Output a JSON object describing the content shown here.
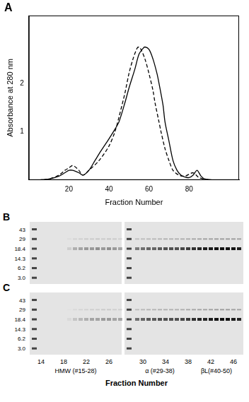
{
  "chart_data": {
    "type": "line",
    "panel": "A",
    "xlabel": "Fraction Number",
    "ylabel": "Absorbance at 280 nm",
    "xlim": [
      0,
      105
    ],
    "ylim": [
      0,
      3.4
    ],
    "xticks": [
      20,
      40,
      60,
      80
    ],
    "yticks": [
      1,
      2
    ],
    "grid": false,
    "series": [
      {
        "color": "#000000",
        "line_style": "solid",
        "x": [
          5,
          10,
          15,
          18,
          20,
          22,
          25,
          27,
          30,
          33,
          36,
          40,
          43,
          45,
          48,
          50,
          53,
          55,
          57,
          58,
          60,
          62,
          64,
          65,
          67,
          68,
          70,
          72,
          74,
          76,
          78,
          80,
          82,
          84,
          86,
          88,
          92
        ],
        "values": [
          0,
          0.02,
          0.08,
          0.15,
          0.2,
          0.2,
          0.15,
          0.1,
          0.2,
          0.4,
          0.6,
          0.85,
          1.05,
          1.2,
          1.6,
          1.9,
          2.3,
          2.6,
          2.72,
          2.75,
          2.7,
          2.5,
          2.2,
          2.0,
          1.55,
          1.2,
          0.8,
          0.4,
          0.2,
          0.1,
          0.06,
          0.05,
          0.1,
          0.2,
          0.08,
          0.02,
          0
        ]
      },
      {
        "color": "#000000",
        "line_style": "dashed",
        "x": [
          5,
          10,
          15,
          18,
          20,
          22,
          25,
          27,
          30,
          35,
          40,
          43,
          45,
          48,
          50,
          52,
          54,
          55,
          56,
          58,
          60,
          62,
          63,
          65,
          66,
          68,
          70,
          72,
          75,
          78,
          82,
          85,
          90
        ],
        "values": [
          0,
          0.02,
          0.1,
          0.2,
          0.25,
          0.3,
          0.2,
          0.1,
          0.2,
          0.4,
          0.7,
          1.0,
          1.3,
          1.8,
          2.2,
          2.5,
          2.72,
          2.75,
          2.7,
          2.5,
          2.2,
          1.85,
          1.6,
          1.2,
          1.0,
          0.65,
          0.4,
          0.2,
          0.1,
          0.08,
          0.15,
          0.05,
          0
        ]
      }
    ]
  },
  "gels": {
    "xlabel": "Fraction Number",
    "marker_labels": [
      "43",
      "29",
      "18.4",
      "14.3",
      "6.2",
      "3.0"
    ],
    "fraction_ticks": [
      14,
      18,
      22,
      26,
      30,
      34,
      38,
      42,
      46
    ],
    "groups": [
      "HMW (#15-28)",
      "α (#29-38)",
      "βL(#40-50)"
    ],
    "lanes": [
      [
        14,
        15,
        16,
        17,
        18,
        19,
        20,
        21,
        22,
        23,
        24,
        25,
        26,
        27,
        28
      ],
      [
        29,
        30,
        31,
        32,
        33,
        34,
        35,
        36,
        37,
        38,
        39,
        40,
        41,
        42,
        43,
        44,
        45,
        46,
        47
      ]
    ],
    "panels": [
      {
        "letter": "B",
        "band_intensity": [
          [
            0,
            0,
            0,
            0,
            0,
            0.1,
            0.25,
            0.3,
            0.35,
            0.35,
            0.4,
            0.35,
            0.4,
            0.35,
            0.3
          ],
          [
            0.5,
            0.55,
            0.6,
            0.6,
            0.65,
            0.7,
            0.7,
            0.7,
            0.75,
            0.8,
            0.85,
            0.9,
            0.95,
            0.95,
            1,
            1,
            1,
            1,
            0.95
          ]
        ]
      },
      {
        "letter": "C",
        "band_intensity": [
          [
            0,
            0,
            0,
            0,
            0,
            0.05,
            0.15,
            0.2,
            0.25,
            0.3,
            0.3,
            0.35,
            0.35,
            0.3,
            0.3
          ],
          [
            0.55,
            0.6,
            0.65,
            0.65,
            0.7,
            0.7,
            0.7,
            0.7,
            0.75,
            0.8,
            0.85,
            0.9,
            0.9,
            0.95,
            1,
            1,
            1,
            0.95,
            0.9
          ]
        ]
      }
    ]
  }
}
